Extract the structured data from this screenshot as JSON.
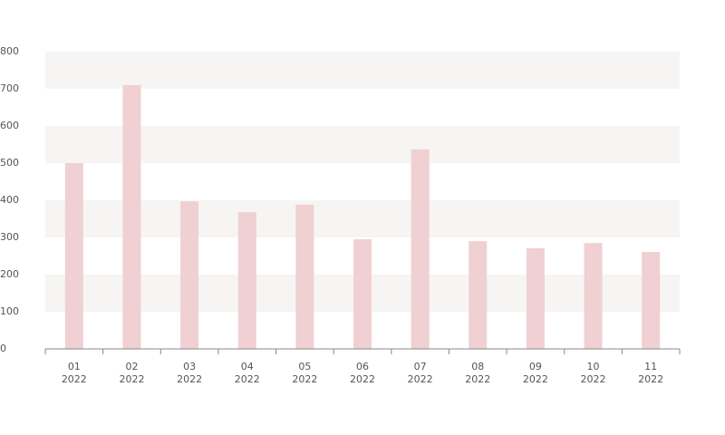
{
  "chart_data": {
    "type": "bar",
    "categories": [
      [
        "01",
        "2022"
      ],
      [
        "02",
        "2022"
      ],
      [
        "03",
        "2022"
      ],
      [
        "04",
        "2022"
      ],
      [
        "05",
        "2022"
      ],
      [
        "06",
        "2022"
      ],
      [
        "07",
        "2022"
      ],
      [
        "08",
        "2022"
      ],
      [
        "09",
        "2022"
      ],
      [
        "10",
        "2022"
      ],
      [
        "11",
        "2022"
      ]
    ],
    "values": [
      500,
      710,
      397,
      368,
      388,
      295,
      537,
      290,
      271,
      285,
      261
    ],
    "color": "#f0d0d3",
    "ylim": [
      0,
      800
    ],
    "yticks": [
      0,
      100,
      200,
      300,
      400,
      500,
      600,
      700,
      800
    ],
    "grid": "bands",
    "grid_color": "#f6f5f4"
  }
}
